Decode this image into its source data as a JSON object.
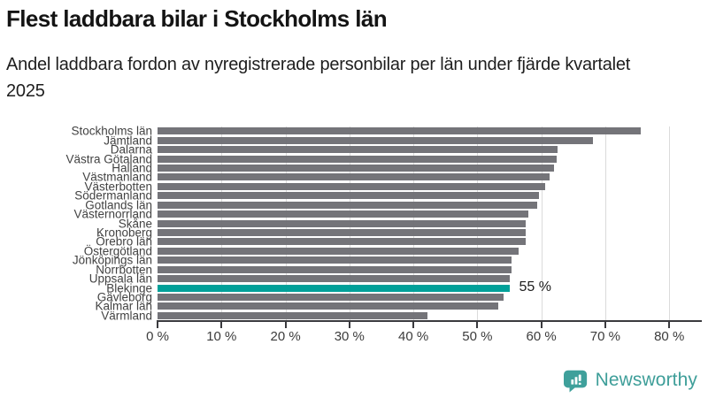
{
  "header": {
    "title": "Flest laddbara bilar i Stockholms län",
    "subtitle": "Andel laddbara fordon av nyregistrerade personbilar per län under fjärde kvartalet 2025"
  },
  "chart_data": {
    "type": "bar",
    "orientation": "horizontal",
    "title": "Flest laddbara bilar i Stockholms län",
    "subtitle": "Andel laddbara fordon av nyregistrerade personbilar per län under fjärde kvartalet 2025",
    "categories": [
      "Stockholms län",
      "Jämtland",
      "Dalarna",
      "Västra Götaland",
      "Halland",
      "Västmanland",
      "Västerbotten",
      "Södermanland",
      "Gotlands län",
      "Västernorrland",
      "Skåne",
      "Kronoberg",
      "Örebro län",
      "Östergötland",
      "Jönköpings län",
      "Norrbotten",
      "Uppsala län",
      "Blekinge",
      "Gävleborg",
      "Kalmar län",
      "Värmland"
    ],
    "values": [
      75.5,
      68.0,
      62.5,
      62.4,
      62.0,
      61.3,
      60.6,
      59.6,
      59.3,
      57.9,
      57.6,
      57.6,
      57.5,
      56.5,
      55.4,
      55.3,
      55.1,
      55.0,
      54.1,
      53.3,
      42.2
    ],
    "highlight": {
      "index": 17,
      "category": "Blekinge",
      "value": 55,
      "label": "55 %"
    },
    "xlabel": "",
    "ylabel": "",
    "xlim": [
      0,
      80
    ],
    "x_tick_values": [
      0,
      10,
      20,
      30,
      40,
      50,
      60,
      70,
      80
    ],
    "x_tick_labels": [
      "0 %",
      "10 %",
      "20 %",
      "30 %",
      "40 %",
      "50 %",
      "60 %",
      "70 %",
      "80 %"
    ],
    "grid": "vertical",
    "legend": "none",
    "colors": {
      "bar": "#6e6e74",
      "highlight": "#00a099",
      "grid": "#dbdbdb",
      "axis": "#3a3a3e"
    }
  },
  "footer": {
    "brand": "Newsworthy",
    "brand_color": "#3e9e99",
    "logo_icon": "bar-chart-speech-bubble-icon"
  }
}
